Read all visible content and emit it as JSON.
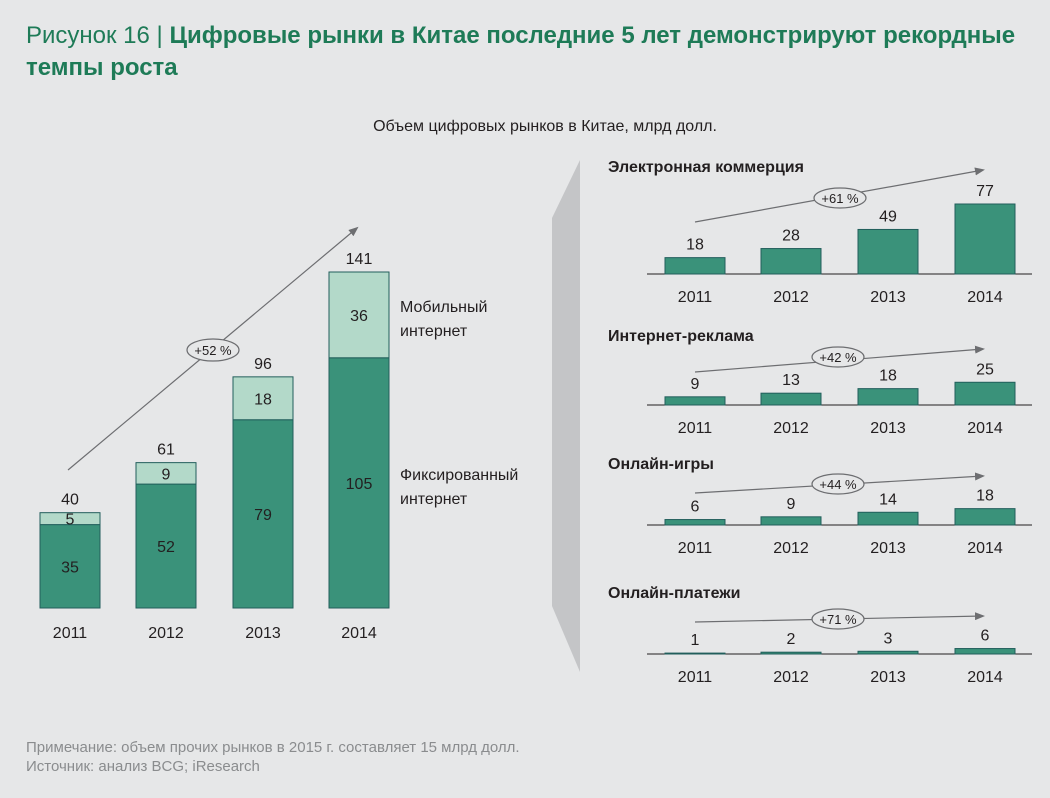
{
  "header": {
    "figure_label": "Рисунок 16 |",
    "title": "Цифровые рынки в Китае последние 5 лет демонстрируют рекордные темпы роста",
    "subtitle": "Объем цифровых рынков в Китае, млрд долл."
  },
  "colors": {
    "fixed": "#3a927a",
    "mobile": "#b3d9c9",
    "bar_stroke": "#215e5b",
    "title": "#1e7b57",
    "background": "#e6e7e8",
    "trend": "#6d6e71"
  },
  "chart_data": [
    {
      "type": "bar",
      "stacked": true,
      "categories": [
        "2011",
        "2012",
        "2013",
        "2014"
      ],
      "series": [
        {
          "name": "Фиксированный интернет",
          "values": [
            35,
            52,
            79,
            105
          ]
        },
        {
          "name": "Мобильный интернет",
          "values": [
            5,
            9,
            18,
            36
          ]
        }
      ],
      "totals": [
        40,
        61,
        96,
        141
      ],
      "growth_label": "+52 %",
      "legend_mobile": [
        "Мобильный",
        "интернет"
      ],
      "legend_fixed": [
        "Фиксированный",
        "интернет"
      ]
    },
    {
      "type": "bar",
      "title": "Электронная коммерция",
      "categories": [
        "2011",
        "2012",
        "2013",
        "2014"
      ],
      "values": [
        18,
        28,
        49,
        77
      ],
      "growth_label": "+61 %"
    },
    {
      "type": "bar",
      "title": "Интернет-реклама",
      "categories": [
        "2011",
        "2012",
        "2013",
        "2014"
      ],
      "values": [
        9,
        13,
        18,
        25
      ],
      "growth_label": "+42 %"
    },
    {
      "type": "bar",
      "title": "Онлайн-игры",
      "categories": [
        "2011",
        "2012",
        "2013",
        "2014"
      ],
      "values": [
        6,
        9,
        14,
        18
      ],
      "growth_label": "+44 %"
    },
    {
      "type": "bar",
      "title": "Онлайн-платежи",
      "categories": [
        "2011",
        "2012",
        "2013",
        "2014"
      ],
      "values": [
        1,
        2,
        3,
        6
      ],
      "growth_label": "+71 %"
    }
  ],
  "footer": {
    "note": "Примечание: объем прочих рынков в 2015 г. составляет 15 млрд долл.",
    "source": "Источник: анализ BCG; iResearch"
  }
}
